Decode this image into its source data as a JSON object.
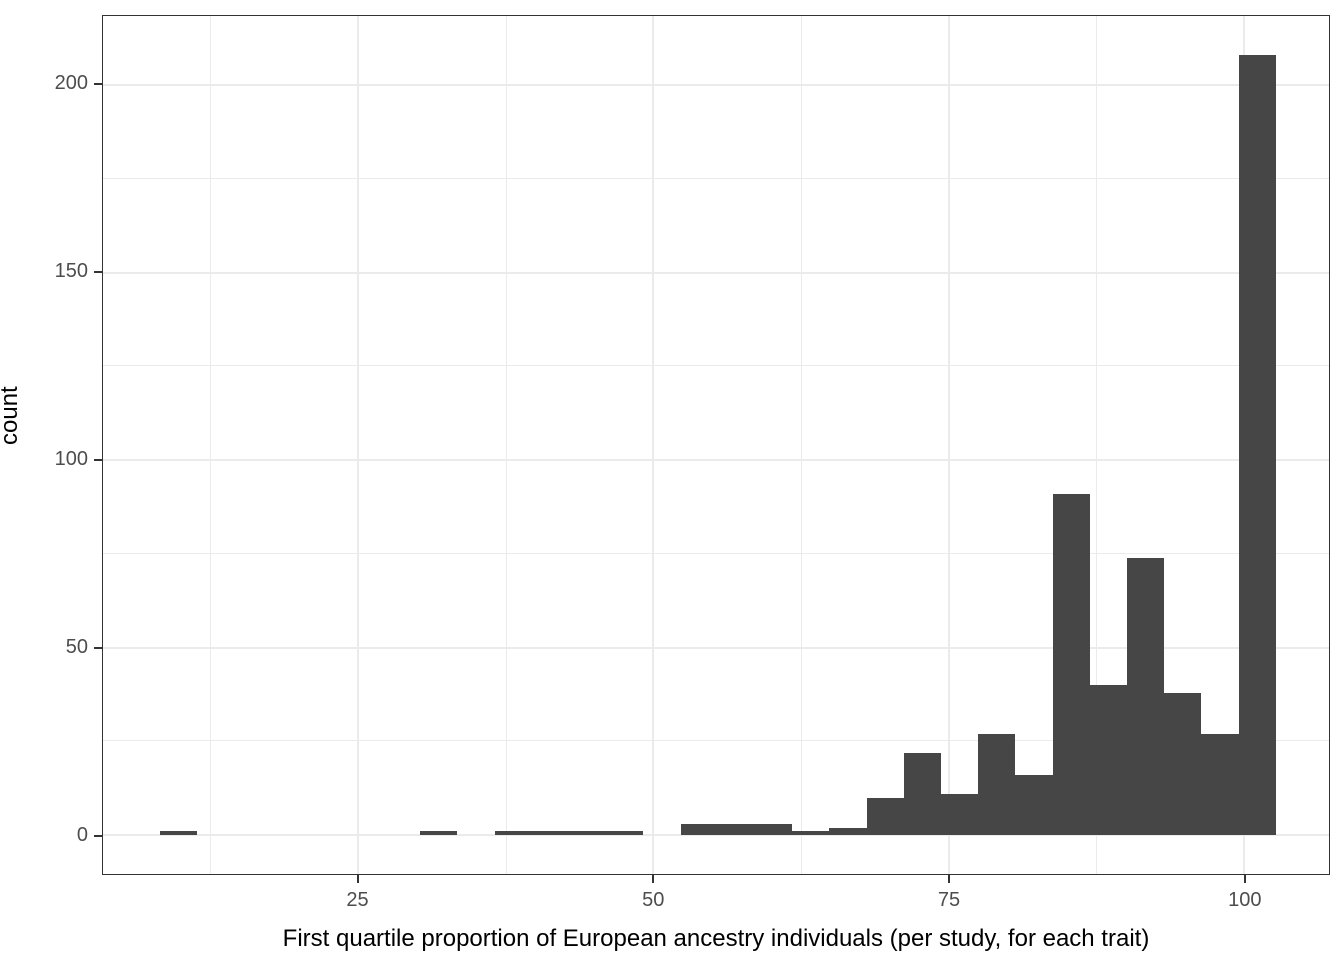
{
  "figure": {
    "x_axis_title": "First quartile proportion of European ancestry individuals (per study, for each trait)",
    "y_axis_title": "count"
  },
  "chart_data": {
    "type": "bar",
    "subtype": "histogram",
    "title": "",
    "xlabel": "First quartile proportion of European ancestry individuals (per study, for each trait)",
    "ylabel": "count",
    "legend": "none",
    "grid": "on",
    "bar_color": "#464646",
    "grid_color": "#ebebeb",
    "panel_border_color": "#333333",
    "tick_label_color": "#4d4d4d",
    "x_domain": [
      3.4,
      107.2
    ],
    "y_domain": [
      -10.4,
      218.4
    ],
    "x_ticks": [
      25,
      50,
      75,
      100
    ],
    "x_tick_labels": [
      "25",
      "50",
      "75",
      "100"
    ],
    "x_minor_gridlines": [
      12.5,
      37.5,
      62.5,
      87.5
    ],
    "y_ticks": [
      0,
      50,
      100,
      150,
      200
    ],
    "y_tick_labels": [
      "0",
      "50",
      "100",
      "150",
      "200"
    ],
    "y_minor_gridlines": [
      25,
      75,
      125,
      175
    ],
    "bin_width": 3.15,
    "bins": [
      {
        "x0": 8.2,
        "x1": 11.35,
        "count": 1
      },
      {
        "x0": 30.25,
        "x1": 33.4,
        "count": 1
      },
      {
        "x0": 36.55,
        "x1": 39.7,
        "count": 1
      },
      {
        "x0": 39.7,
        "x1": 42.85,
        "count": 1
      },
      {
        "x0": 42.85,
        "x1": 46.0,
        "count": 1
      },
      {
        "x0": 46.0,
        "x1": 49.15,
        "count": 1
      },
      {
        "x0": 52.3,
        "x1": 55.45,
        "count": 3
      },
      {
        "x0": 55.45,
        "x1": 58.6,
        "count": 3
      },
      {
        "x0": 58.6,
        "x1": 61.75,
        "count": 3
      },
      {
        "x0": 61.75,
        "x1": 64.9,
        "count": 1
      },
      {
        "x0": 64.9,
        "x1": 68.05,
        "count": 2
      },
      {
        "x0": 68.05,
        "x1": 71.2,
        "count": 10
      },
      {
        "x0": 71.2,
        "x1": 74.35,
        "count": 22
      },
      {
        "x0": 74.35,
        "x1": 77.5,
        "count": 11
      },
      {
        "x0": 77.5,
        "x1": 80.65,
        "count": 27
      },
      {
        "x0": 80.65,
        "x1": 83.8,
        "count": 16
      },
      {
        "x0": 83.8,
        "x1": 86.95,
        "count": 91
      },
      {
        "x0": 86.95,
        "x1": 90.1,
        "count": 40
      },
      {
        "x0": 90.1,
        "x1": 93.25,
        "count": 74
      },
      {
        "x0": 93.25,
        "x1": 96.4,
        "count": 38
      },
      {
        "x0": 96.4,
        "x1": 99.55,
        "count": 27
      },
      {
        "x0": 99.55,
        "x1": 102.7,
        "count": 208
      }
    ]
  }
}
